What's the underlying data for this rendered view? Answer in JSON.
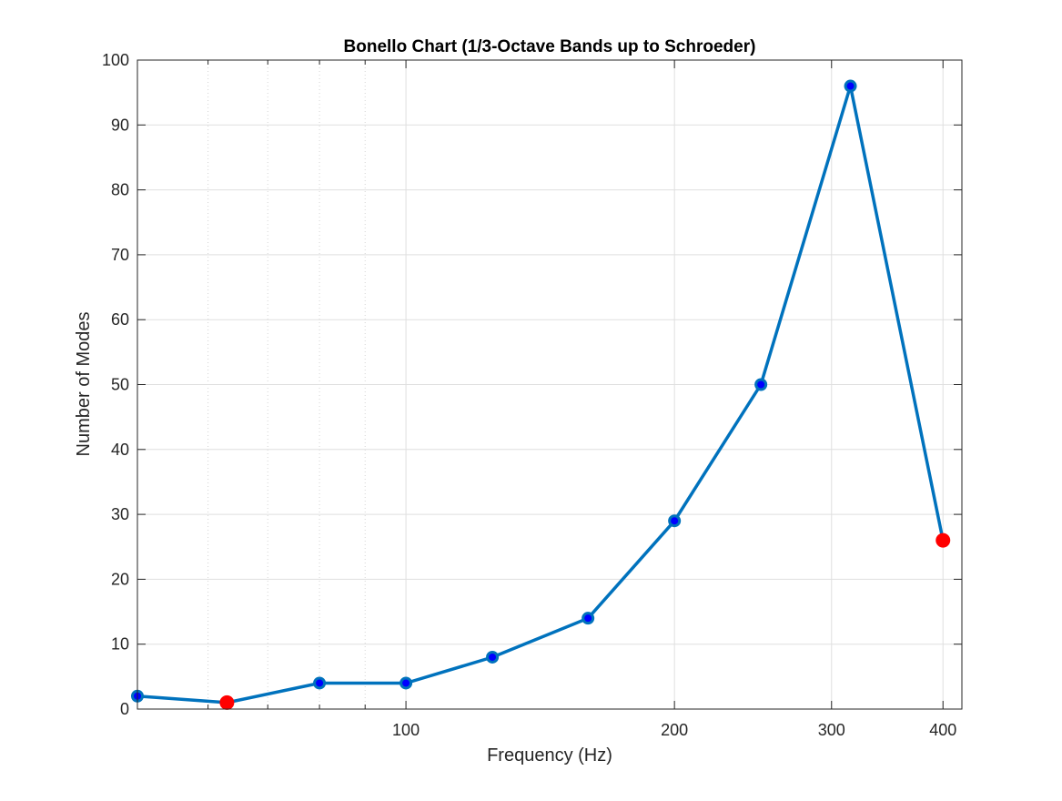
{
  "chart_data": {
    "type": "line",
    "title": "Bonello Chart (1/3-Octave Bands up to Schroeder)",
    "xlabel": "Frequency (Hz)",
    "ylabel": "Number of Modes",
    "x_scale": "log",
    "xlim": [
      50,
      420
    ],
    "ylim": [
      0,
      100
    ],
    "x_ticks": [
      100,
      200,
      300,
      400
    ],
    "x_tick_labels": [
      "100",
      "200",
      "300",
      "400"
    ],
    "y_ticks": [
      0,
      10,
      20,
      30,
      40,
      50,
      60,
      70,
      80,
      90,
      100
    ],
    "y_tick_labels": [
      "0",
      "10",
      "20",
      "30",
      "40",
      "50",
      "60",
      "70",
      "80",
      "90",
      "100"
    ],
    "grid": true,
    "series": [
      {
        "x": [
          50,
          63,
          80,
          100,
          125,
          160,
          200,
          250,
          315,
          400
        ],
        "values": [
          2,
          1,
          4,
          4,
          8,
          14,
          29,
          50,
          96,
          26
        ],
        "flagged_indices": [
          1,
          9
        ]
      }
    ],
    "colors": {
      "line": "#0072BD",
      "marker_fill": "#0000FF",
      "flagged": "#FF0000",
      "grid": "#DFDFDF",
      "axes": "#262626"
    }
  }
}
